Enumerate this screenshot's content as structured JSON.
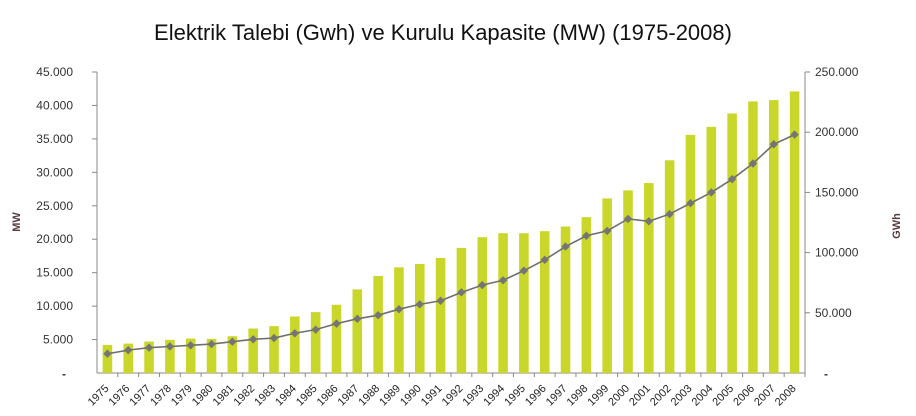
{
  "chart_data": {
    "type": "bar",
    "title": "Elektrik Talebi (Gwh) ve Kurulu Kapasite (MW) (1975-2008)",
    "ylabel_left": "MW",
    "ylabel_right": "GWh",
    "categories": [
      "1975",
      "1976",
      "1977",
      "1978",
      "1979",
      "1980",
      "1981",
      "1982",
      "1983",
      "1984",
      "1985",
      "1986",
      "1987",
      "1988",
      "1989",
      "1990",
      "1991",
      "1992",
      "1993",
      "1994",
      "1995",
      "1996",
      "1997",
      "1998",
      "1999",
      "2000",
      "2001",
      "2002",
      "2003",
      "2004",
      "2005",
      "2006",
      "2007",
      "2008"
    ],
    "series": [
      {
        "name": "",
        "axis": "left",
        "render": "bar",
        "values": [
          4200,
          4400,
          4700,
          4950,
          5150,
          5100,
          5500,
          6650,
          7000,
          8450,
          9100,
          10200,
          12500,
          14500,
          15800,
          16300,
          17200,
          18700,
          20300,
          20900,
          20900,
          21200,
          21900,
          23300,
          26100,
          27300,
          28400,
          31800,
          35600,
          36800,
          38800,
          40600,
          40800,
          42100
        ]
      },
      {
        "name": "",
        "axis": "right",
        "render": "line",
        "values": [
          16000,
          19000,
          21000,
          22000,
          23000,
          24000,
          26000,
          28000,
          29000,
          33000,
          36000,
          41000,
          45000,
          48000,
          53000,
          57000,
          60000,
          67000,
          73000,
          77000,
          85000,
          94000,
          105000,
          114000,
          118000,
          128000,
          126000,
          132000,
          141000,
          150000,
          161000,
          174000,
          190000,
          198000
        ]
      }
    ],
    "ylim_left": [
      0,
      45000
    ],
    "ylim_right": [
      0,
      250000
    ],
    "yticks_left": [
      "5.000",
      "10.000",
      "15.000",
      "20.000",
      "25.000",
      "30.000",
      "35.000",
      "40.000",
      "45.000"
    ],
    "yticks_right": [
      "50.000",
      "100.000",
      "150.000",
      "200.000",
      "250.000"
    ],
    "zero_label": "-",
    "grid": false,
    "colors": {
      "bar": "#c9d72b",
      "line": "#6f6f6f",
      "marker": "#757575"
    }
  }
}
